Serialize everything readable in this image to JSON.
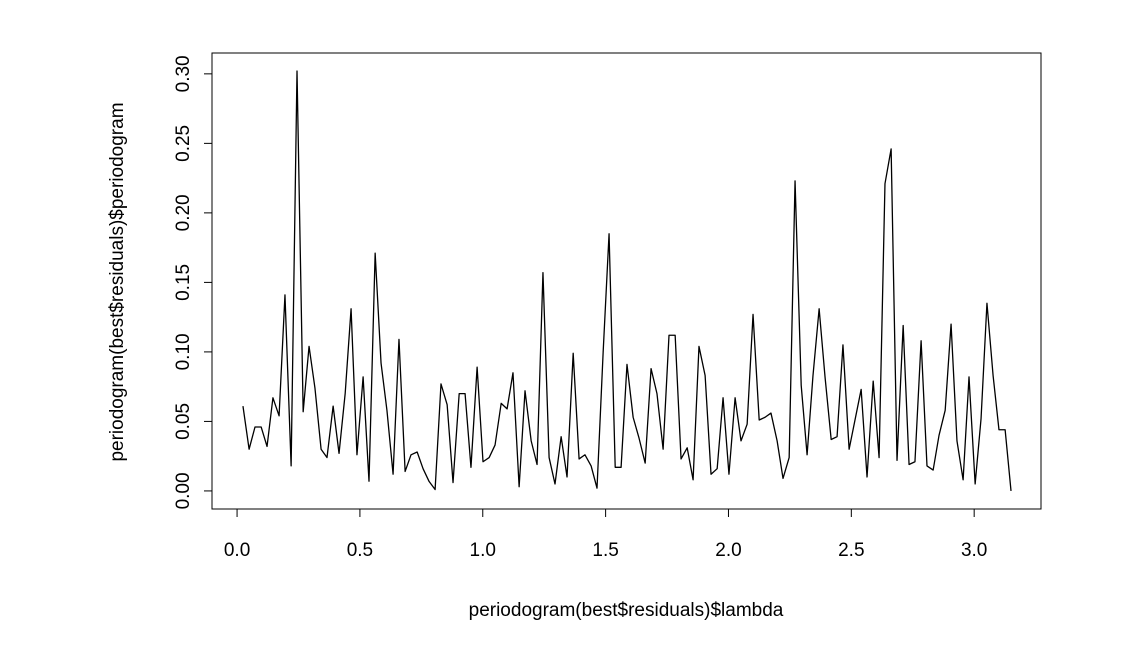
{
  "chart_data": {
    "type": "line",
    "xlabel": "periodogram(best$residuals)$lambda",
    "ylabel": "periodogram(best$residuals)$periodogram",
    "color": "#000000",
    "x": [
      0.024,
      0.049,
      0.073,
      0.098,
      0.122,
      0.146,
      0.171,
      0.195,
      0.22,
      0.244,
      0.269,
      0.293,
      0.317,
      0.342,
      0.366,
      0.391,
      0.415,
      0.44,
      0.464,
      0.488,
      0.513,
      0.537,
      0.562,
      0.586,
      0.61,
      0.635,
      0.659,
      0.684,
      0.708,
      0.733,
      0.757,
      0.781,
      0.806,
      0.83,
      0.855,
      0.879,
      0.904,
      0.928,
      0.952,
      0.977,
      1.001,
      1.026,
      1.05,
      1.075,
      1.099,
      1.123,
      1.148,
      1.172,
      1.197,
      1.221,
      1.245,
      1.27,
      1.294,
      1.319,
      1.343,
      1.368,
      1.392,
      1.416,
      1.441,
      1.465,
      1.49,
      1.514,
      1.539,
      1.563,
      1.587,
      1.612,
      1.636,
      1.661,
      1.685,
      1.709,
      1.734,
      1.758,
      1.783,
      1.807,
      1.832,
      1.856,
      1.88,
      1.905,
      1.929,
      1.954,
      1.978,
      2.002,
      2.027,
      2.051,
      2.076,
      2.1,
      2.125,
      2.149,
      2.173,
      2.198,
      2.222,
      2.247,
      2.271,
      2.296,
      2.32,
      2.344,
      2.369,
      2.393,
      2.418,
      2.442,
      2.466,
      2.491,
      2.515,
      2.54,
      2.564,
      2.589,
      2.613,
      2.637,
      2.662,
      2.686,
      2.711,
      2.735,
      2.759,
      2.784,
      2.808,
      2.833,
      2.857,
      2.882,
      2.906,
      2.93,
      2.955,
      2.979,
      3.004,
      3.028,
      3.052,
      3.077,
      3.101,
      3.126,
      3.15
    ],
    "values": [
      0.061,
      0.03,
      0.046,
      0.046,
      0.032,
      0.067,
      0.054,
      0.141,
      0.018,
      0.302,
      0.057,
      0.104,
      0.074,
      0.03,
      0.024,
      0.061,
      0.027,
      0.07,
      0.131,
      0.026,
      0.082,
      0.007,
      0.171,
      0.092,
      0.058,
      0.012,
      0.109,
      0.014,
      0.026,
      0.028,
      0.016,
      0.007,
      0.001,
      0.077,
      0.062,
      0.006,
      0.07,
      0.07,
      0.017,
      0.089,
      0.021,
      0.024,
      0.033,
      0.063,
      0.059,
      0.085,
      0.003,
      0.072,
      0.036,
      0.019,
      0.157,
      0.024,
      0.005,
      0.039,
      0.01,
      0.099,
      0.023,
      0.026,
      0.018,
      0.002,
      0.1,
      0.185,
      0.017,
      0.017,
      0.091,
      0.053,
      0.038,
      0.02,
      0.088,
      0.07,
      0.03,
      0.112,
      0.112,
      0.023,
      0.031,
      0.008,
      0.104,
      0.083,
      0.012,
      0.016,
      0.067,
      0.012,
      0.067,
      0.036,
      0.048,
      0.127,
      0.051,
      0.053,
      0.056,
      0.036,
      0.009,
      0.024,
      0.223,
      0.076,
      0.026,
      0.083,
      0.131,
      0.082,
      0.037,
      0.039,
      0.105,
      0.03,
      0.051,
      0.073,
      0.01,
      0.079,
      0.024,
      0.221,
      0.246,
      0.022,
      0.119,
      0.019,
      0.021,
      0.108,
      0.018,
      0.015,
      0.04,
      0.058,
      0.12,
      0.036,
      0.008,
      0.082,
      0.005,
      0.052,
      0.135,
      0.083,
      0.044,
      0.044,
      0
    ],
    "xlim": [
      -0.102,
      3.272
    ],
    "ylim": [
      -0.013,
      0.315
    ],
    "xticks": [
      {
        "value": 0,
        "label": "0.0"
      },
      {
        "value": 0.5,
        "label": "0.5"
      },
      {
        "value": 1,
        "label": "1.0"
      },
      {
        "value": 1.5,
        "label": "1.5"
      },
      {
        "value": 2,
        "label": "2.0"
      },
      {
        "value": 2.5,
        "label": "2.5"
      },
      {
        "value": 3,
        "label": "3.0"
      }
    ],
    "yticks": [
      {
        "value": 0,
        "label": "0.00"
      },
      {
        "value": 0.05,
        "label": "0.05"
      },
      {
        "value": 0.1,
        "label": "0.10"
      },
      {
        "value": 0.15,
        "label": "0.15"
      },
      {
        "value": 0.2,
        "label": "0.20"
      },
      {
        "value": 0.25,
        "label": "0.25"
      },
      {
        "value": 0.3,
        "label": "0.30"
      }
    ]
  }
}
